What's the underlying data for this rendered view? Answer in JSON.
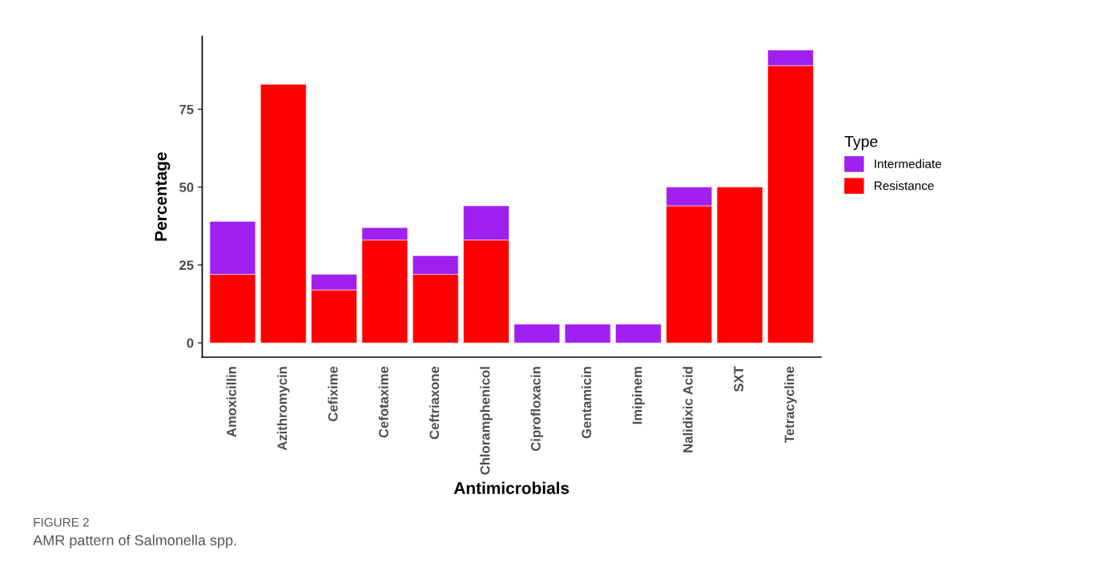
{
  "chart_data": {
    "type": "bar",
    "stacked": true,
    "xlabel": "Antimicrobials",
    "ylabel": "Percentage",
    "legend_title": "Type",
    "legend": "right",
    "categories": [
      "Amoxicillin",
      "Azithromycin",
      "Cefixime",
      "Cefotaxime",
      "Ceftriaxone",
      "Chloramphenicol",
      "Ciprofloxacin",
      "Gentamicin",
      "Imipinem",
      "Nalidixic Acid",
      "SXT",
      "Tetracycline"
    ],
    "series": [
      {
        "name": "Resistance",
        "color": "#ff0000",
        "values": [
          22,
          83,
          17,
          33,
          22,
          33,
          0,
          0,
          0,
          44,
          50,
          89
        ]
      },
      {
        "name": "Intermediate",
        "color": "#a020f0",
        "values": [
          17,
          0,
          5,
          4,
          6,
          11,
          6,
          6,
          6,
          6,
          0,
          5
        ]
      }
    ],
    "ylim": [
      -4.6,
      98.4
    ],
    "yticks": [
      0,
      25,
      50,
      75
    ],
    "grid": false,
    "annotations": [
      "FIGURE 2",
      "AMR pattern of Salmonella spp."
    ]
  }
}
